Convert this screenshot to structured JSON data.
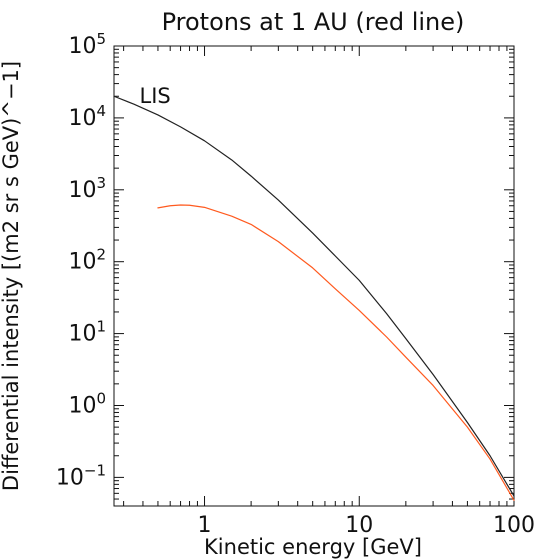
{
  "chart_data": {
    "type": "line",
    "title": "Protons at 1 AU (red line)",
    "xlabel": "Kinetic energy [GeV]",
    "ylabel": "Differential intensity [(m2 sr s GeV)^−1]",
    "xscale": "log",
    "yscale": "log",
    "xlim": [
      0.26,
      100
    ],
    "ylim": [
      0.04,
      100000
    ],
    "x_ticks": [
      {
        "value": 1,
        "label": "1"
      },
      {
        "value": 10,
        "label": "10"
      },
      {
        "value": 100,
        "label": "100"
      }
    ],
    "y_ticks": [
      {
        "value": 0.1,
        "base": "10",
        "exp": "−1"
      },
      {
        "value": 1,
        "base": "10",
        "exp": "0"
      },
      {
        "value": 10,
        "base": "10",
        "exp": "1"
      },
      {
        "value": 100,
        "base": "10",
        "exp": "2"
      },
      {
        "value": 1000,
        "base": "10",
        "exp": "3"
      },
      {
        "value": 10000,
        "base": "10",
        "exp": "4"
      },
      {
        "value": 100000,
        "base": "10",
        "exp": "5"
      }
    ],
    "annotations": [
      {
        "text": "LIS",
        "x": 0.38,
        "y": 16000
      }
    ],
    "grid": false,
    "series": [
      {
        "color": "#222222",
        "points": [
          [
            0.26,
            20000
          ],
          [
            0.35,
            15500
          ],
          [
            0.5,
            11000
          ],
          [
            0.7,
            7500
          ],
          [
            1.0,
            4800
          ],
          [
            1.5,
            2600
          ],
          [
            2.0,
            1550
          ],
          [
            3.0,
            720
          ],
          [
            5.0,
            250
          ],
          [
            7.0,
            120
          ],
          [
            10.0,
            55
          ],
          [
            15.0,
            19
          ],
          [
            20.0,
            8.5
          ],
          [
            30.0,
            2.7
          ],
          [
            50.0,
            0.58
          ],
          [
            70.0,
            0.2
          ],
          [
            100.0,
            0.055
          ]
        ]
      },
      {
        "color": "#ff5a1f",
        "points": [
          [
            0.5,
            560
          ],
          [
            0.6,
            600
          ],
          [
            0.7,
            615
          ],
          [
            0.8,
            610
          ],
          [
            1.0,
            570
          ],
          [
            1.5,
            430
          ],
          [
            2.0,
            330
          ],
          [
            3.0,
            190
          ],
          [
            5.0,
            82
          ],
          [
            7.0,
            42
          ],
          [
            10.0,
            21
          ],
          [
            15.0,
            9.0
          ],
          [
            20.0,
            4.7
          ],
          [
            30.0,
            1.9
          ],
          [
            50.0,
            0.5
          ],
          [
            70.0,
            0.18
          ],
          [
            100.0,
            0.048
          ]
        ]
      }
    ]
  }
}
